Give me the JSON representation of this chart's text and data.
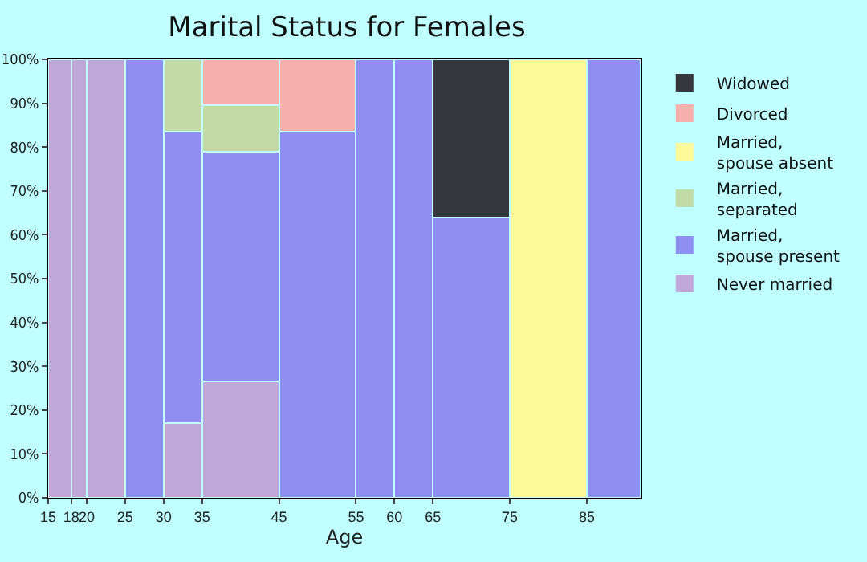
{
  "chart_data": {
    "type": "bar",
    "stacked": true,
    "title": "Marital Status for Females",
    "xlabel": "Age",
    "x": [
      16.5,
      19,
      22.5,
      27.5,
      32.5,
      40,
      50,
      57.5,
      62.5,
      70,
      80,
      88.5
    ],
    "series": [
      {
        "name": "Never married",
        "color": "#bfa8d8",
        "values": [
          100,
          100,
          100,
          null,
          17,
          26.5,
          null,
          null,
          null,
          null,
          null,
          null
        ]
      },
      {
        "name": "Married, spouse present",
        "color": "#8f8ff2",
        "values": [
          null,
          null,
          null,
          100,
          66.5,
          52.5,
          83.5,
          100,
          100,
          64,
          null,
          100
        ]
      },
      {
        "name": "Married, separated",
        "color": "#c2daa6",
        "values": [
          null,
          null,
          null,
          null,
          16.5,
          10.5,
          null,
          null,
          null,
          null,
          null,
          null
        ]
      },
      {
        "name": "Married, spouse absent",
        "color": "#fdf898",
        "values": [
          null,
          null,
          null,
          null,
          null,
          null,
          null,
          null,
          null,
          null,
          100,
          null
        ]
      },
      {
        "name": "Divorced",
        "color": "#f8b0ac",
        "values": [
          null,
          null,
          null,
          null,
          null,
          10.5,
          16.5,
          null,
          null,
          null,
          null,
          null
        ]
      },
      {
        "name": "Widowed",
        "color": "#36373d",
        "values": [
          null,
          null,
          null,
          null,
          null,
          null,
          null,
          null,
          null,
          36,
          null,
          null
        ]
      }
    ],
    "xlim": [
      15,
      92
    ],
    "xticks": [
      15,
      18,
      20,
      25,
      30,
      35,
      45,
      55,
      60,
      65,
      75,
      85
    ],
    "ylim": [
      0,
      100
    ],
    "yticks": [
      {
        "value": 0,
        "label": "0%"
      },
      {
        "value": 10,
        "label": "10%"
      },
      {
        "value": 20,
        "label": "20%"
      },
      {
        "value": 30,
        "label": "30%"
      },
      {
        "value": 40,
        "label": "40%"
      },
      {
        "value": 50,
        "label": "50%"
      },
      {
        "value": 60,
        "label": "60%"
      },
      {
        "value": 70,
        "label": "70%"
      },
      {
        "value": 80,
        "label": "80%"
      },
      {
        "value": 90,
        "label": "90%"
      },
      {
        "value": 100,
        "label": "100%"
      }
    ],
    "legend": "right"
  }
}
